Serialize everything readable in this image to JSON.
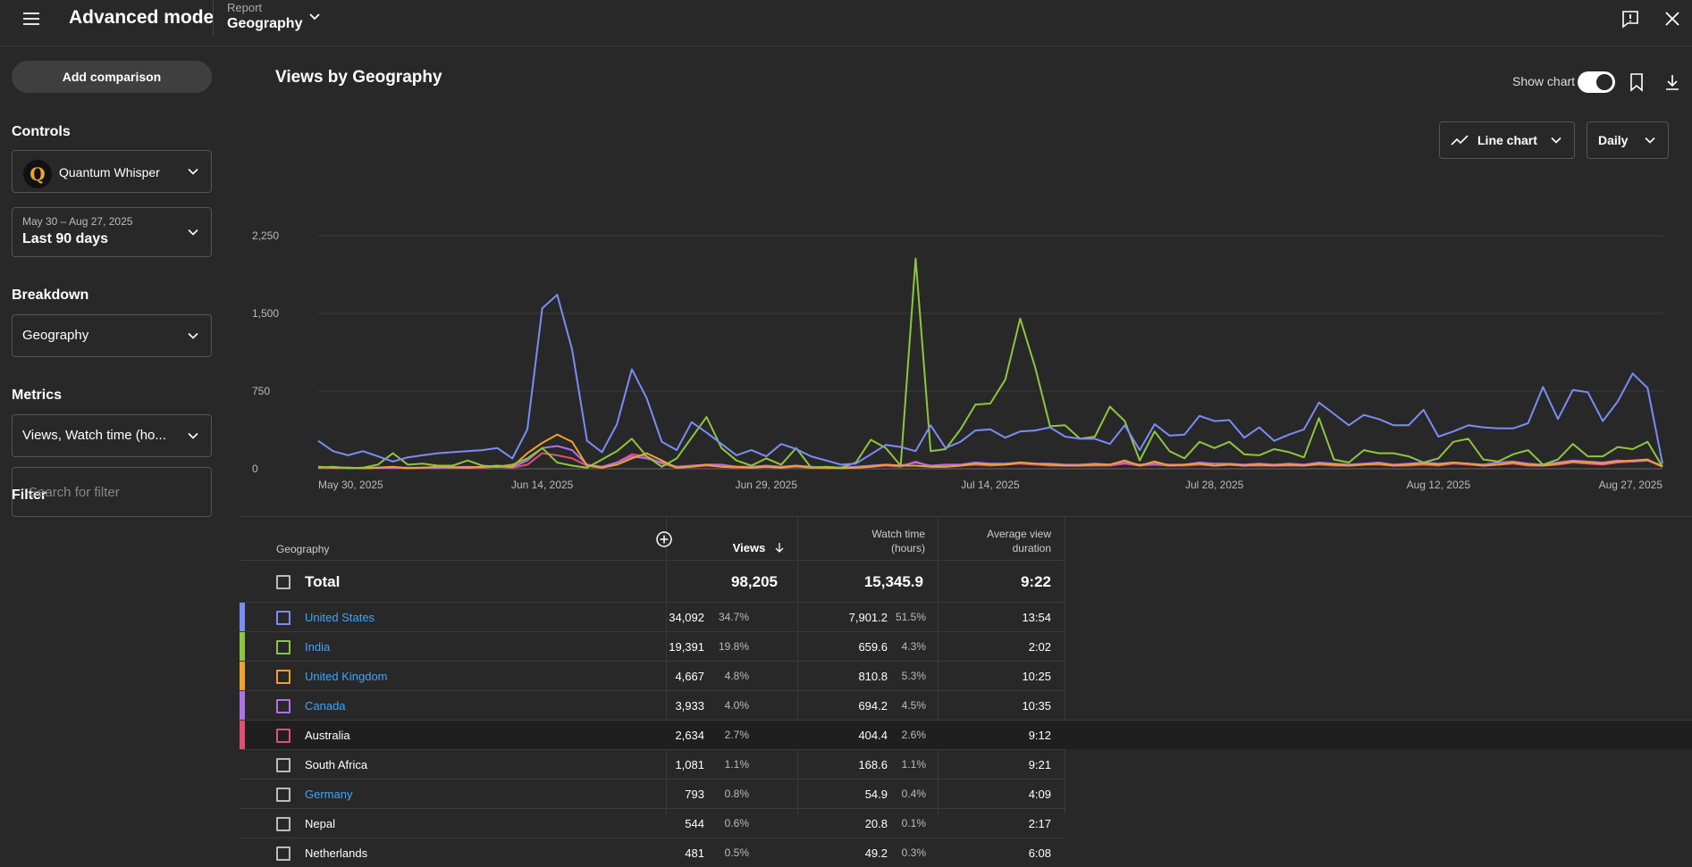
{
  "header": {
    "app_title": "Advanced mode",
    "report_label": "Report",
    "report_value": "Geography"
  },
  "sidebar": {
    "add_comparison": "Add comparison",
    "controls_title": "Controls",
    "channel_name": "Quantum Whisper",
    "channel_initial": "Q",
    "date_range": "May 30 – Aug 27, 2025",
    "date_label": "Last 90 days",
    "breakdown_title": "Breakdown",
    "breakdown_value": "Geography",
    "metrics_title": "Metrics",
    "metrics_value": "Views, Watch time (ho...",
    "filter_title": "Filter",
    "filter_placeholder": "Search for filter"
  },
  "chart_header": {
    "title": "Views by Geography",
    "show_chart_label": "Show chart",
    "chart_type_label": "Line chart",
    "interval_label": "Daily"
  },
  "chart_data": {
    "type": "line",
    "x_tick_labels": [
      "May 30, 2025",
      "Jun 14, 2025",
      "Jun 29, 2025",
      "Jul 14, 2025",
      "Jul 28, 2025",
      "Aug 12, 2025",
      "Aug 27, 2025"
    ],
    "y_tick_labels": [
      "0",
      "750",
      "1,500",
      "2,250"
    ],
    "ylim": [
      0,
      2250
    ],
    "grid": true,
    "series": [
      {
        "name": "United States",
        "color": "#7b8cf5",
        "values": [
          270,
          170,
          130,
          170,
          120,
          70,
          110,
          130,
          150,
          160,
          170,
          180,
          200,
          100,
          380,
          1550,
          1680,
          1150,
          270,
          160,
          430,
          960,
          680,
          260,
          180,
          450,
          350,
          240,
          130,
          180,
          120,
          240,
          190,
          120,
          80,
          40,
          50,
          140,
          230,
          210,
          170,
          420,
          200,
          260,
          370,
          380,
          300,
          360,
          370,
          400,
          310,
          290,
          290,
          240,
          420,
          180,
          430,
          320,
          330,
          510,
          460,
          470,
          300,
          400,
          270,
          330,
          380,
          640,
          530,
          420,
          520,
          480,
          420,
          420,
          570,
          310,
          360,
          420,
          400,
          390,
          390,
          440,
          790,
          480,
          760,
          740,
          460,
          650,
          920,
          780,
          50
        ]
      },
      {
        "name": "India",
        "color": "#8dc63f",
        "values": [
          10,
          20,
          5,
          10,
          40,
          150,
          40,
          50,
          30,
          30,
          80,
          30,
          20,
          40,
          100,
          200,
          60,
          30,
          10,
          90,
          170,
          290,
          120,
          20,
          100,
          300,
          500,
          200,
          80,
          30,
          100,
          40,
          200,
          10,
          20,
          10,
          60,
          280,
          200,
          30,
          2030,
          170,
          190,
          380,
          620,
          630,
          860,
          1450,
          980,
          410,
          420,
          290,
          310,
          600,
          460,
          80,
          360,
          170,
          100,
          260,
          200,
          260,
          140,
          130,
          190,
          160,
          110,
          490,
          90,
          60,
          180,
          150,
          150,
          120,
          60,
          100,
          260,
          290,
          90,
          70,
          140,
          180,
          40,
          90,
          240,
          120,
          120,
          210,
          190,
          260,
          20
        ]
      },
      {
        "name": "United Kingdom",
        "color": "#f0a030",
        "values": [
          20,
          10,
          10,
          5,
          10,
          20,
          5,
          10,
          20,
          15,
          10,
          20,
          30,
          20,
          150,
          250,
          330,
          260,
          30,
          10,
          40,
          100,
          150,
          80,
          10,
          20,
          40,
          20,
          20,
          10,
          20,
          10,
          30,
          10,
          10,
          5,
          10,
          20,
          40,
          30,
          30,
          20,
          20,
          30,
          50,
          40,
          40,
          60,
          50,
          40,
          30,
          30,
          40,
          40,
          80,
          30,
          70,
          30,
          40,
          50,
          30,
          40,
          30,
          40,
          30,
          40,
          30,
          50,
          40,
          30,
          40,
          50,
          30,
          40,
          50,
          40,
          60,
          50,
          30,
          40,
          60,
          40,
          30,
          50,
          70,
          60,
          50,
          70,
          80,
          90,
          20
        ]
      },
      {
        "name": "Canada",
        "color": "#b070e8",
        "values": [
          15,
          10,
          10,
          5,
          10,
          10,
          10,
          10,
          10,
          15,
          20,
          15,
          20,
          15,
          80,
          200,
          220,
          180,
          40,
          20,
          60,
          120,
          100,
          60,
          20,
          30,
          40,
          40,
          20,
          20,
          30,
          20,
          30,
          20,
          10,
          10,
          20,
          30,
          40,
          30,
          60,
          30,
          40,
          40,
          60,
          50,
          50,
          60,
          50,
          50,
          40,
          40,
          50,
          40,
          60,
          40,
          50,
          40,
          40,
          60,
          50,
          50,
          40,
          50,
          40,
          50,
          40,
          60,
          50,
          40,
          50,
          60,
          40,
          50,
          60,
          50,
          60,
          50,
          40,
          60,
          70,
          50,
          40,
          60,
          80,
          70,
          60,
          80,
          70,
          80,
          30
        ]
      },
      {
        "name": "Australia",
        "color": "#e05070",
        "values": [
          10,
          10,
          5,
          5,
          10,
          10,
          5,
          10,
          10,
          10,
          10,
          10,
          20,
          10,
          40,
          150,
          130,
          100,
          30,
          10,
          60,
          140,
          120,
          50,
          10,
          20,
          30,
          20,
          10,
          10,
          20,
          10,
          20,
          10,
          5,
          5,
          10,
          20,
          30,
          20,
          70,
          20,
          20,
          30,
          40,
          30,
          40,
          50,
          40,
          30,
          30,
          30,
          30,
          30,
          50,
          30,
          40,
          30,
          30,
          40,
          30,
          40,
          30,
          30,
          30,
          30,
          30,
          40,
          30,
          30,
          40,
          40,
          30,
          30,
          40,
          30,
          50,
          40,
          30,
          40,
          50,
          30,
          30,
          40,
          60,
          50,
          40,
          60,
          70,
          80,
          20
        ]
      }
    ]
  },
  "table": {
    "col_geography": "Geography",
    "col_views": "Views",
    "col_watch_time_1": "Watch time",
    "col_watch_time_2": "(hours)",
    "col_avg_1": "Average view",
    "col_avg_2": "duration",
    "total": {
      "label": "Total",
      "views": "98,205",
      "watch": "15,345.9",
      "avg": "9:22"
    },
    "rows": [
      {
        "name": "United States",
        "link": true,
        "color": "#7b8cf5",
        "views": "34,092",
        "views_pct": "34.7%",
        "watch": "7,901.2",
        "watch_pct": "51.5%",
        "avg": "13:54"
      },
      {
        "name": "India",
        "link": true,
        "color": "#8dc63f",
        "views": "19,391",
        "views_pct": "19.8%",
        "watch": "659.6",
        "watch_pct": "4.3%",
        "avg": "2:02"
      },
      {
        "name": "United Kingdom",
        "link": true,
        "color": "#f0a030",
        "views": "4,667",
        "views_pct": "4.8%",
        "watch": "810.8",
        "watch_pct": "5.3%",
        "avg": "10:25"
      },
      {
        "name": "Canada",
        "link": true,
        "color": "#b070e8",
        "views": "3,933",
        "views_pct": "4.0%",
        "watch": "694.2",
        "watch_pct": "4.5%",
        "avg": "10:35"
      },
      {
        "name": "Australia",
        "link": false,
        "color": "#e05070",
        "views": "2,634",
        "views_pct": "2.7%",
        "watch": "404.4",
        "watch_pct": "2.6%",
        "avg": "9:12",
        "highlight": true
      },
      {
        "name": "South Africa",
        "link": false,
        "color": "",
        "views": "1,081",
        "views_pct": "1.1%",
        "watch": "168.6",
        "watch_pct": "1.1%",
        "avg": "9:21"
      },
      {
        "name": "Germany",
        "link": true,
        "color": "",
        "views": "793",
        "views_pct": "0.8%",
        "watch": "54.9",
        "watch_pct": "0.4%",
        "avg": "4:09"
      },
      {
        "name": "Nepal",
        "link": false,
        "color": "",
        "views": "544",
        "views_pct": "0.6%",
        "watch": "20.8",
        "watch_pct": "0.1%",
        "avg": "2:17"
      },
      {
        "name": "Netherlands",
        "link": false,
        "color": "",
        "views": "481",
        "views_pct": "0.5%",
        "watch": "49.2",
        "watch_pct": "0.3%",
        "avg": "6:08"
      }
    ]
  }
}
